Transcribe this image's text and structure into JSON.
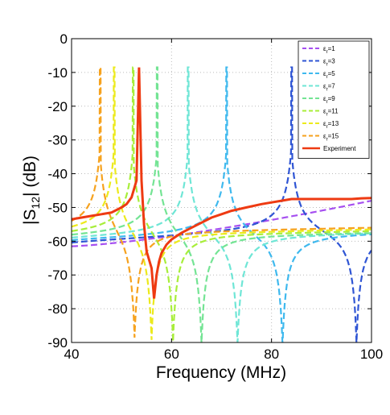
{
  "chart_data": {
    "type": "line",
    "title": "",
    "xlabel": "Frequency (MHz)",
    "ylabel": {
      "main": "|S",
      "sub": "12",
      "rest": "| (dB)"
    },
    "xlim": [
      40,
      100
    ],
    "ylim": [
      -90,
      0
    ],
    "xticks": [
      "40",
      "60",
      "80",
      "100"
    ],
    "xtick_values": [
      40,
      60,
      80,
      100
    ],
    "yticks": [
      "0",
      "-10",
      "-20",
      "-30",
      "-40",
      "-50",
      "-60",
      "-70",
      "-80",
      "-90"
    ],
    "ytick_values": [
      0,
      -10,
      -20,
      -30,
      -40,
      -50,
      -60,
      -70,
      -80,
      -90
    ],
    "grid": true,
    "legend_position": "top-right",
    "series": [
      {
        "name": "ε_r=1",
        "label_main": "ε",
        "label_sub": "r",
        "label_rest": "=1",
        "color": "#a64ff0",
        "dash": "dashed",
        "kind": "resonant",
        "resonance": null,
        "antiresonance": null,
        "level": -61.5,
        "end": -48.0
      },
      {
        "name": "ε_r=3",
        "label_main": "ε",
        "label_sub": "r",
        "label_rest": "=3",
        "color": "#2f55d4",
        "dash": "dashed",
        "kind": "resonant",
        "resonance": 84.0,
        "antiresonance": 97.0,
        "level": -61.0,
        "end": -57.0
      },
      {
        "name": "ε_r=5",
        "label_main": "ε",
        "label_sub": "r",
        "label_rest": "=5",
        "color": "#3fb9ee",
        "dash": "dashed",
        "kind": "resonant",
        "resonance": 71.0,
        "antiresonance": 82.2,
        "level": -60.5,
        "end": -57.5
      },
      {
        "name": "ε_r=7",
        "label_main": "ε",
        "label_sub": "r",
        "label_rest": "=7",
        "color": "#6fe6d6",
        "dash": "dashed",
        "kind": "resonant",
        "resonance": 63.3,
        "antiresonance": 73.2,
        "level": -60.0,
        "end": -57.5
      },
      {
        "name": "ε_r=9",
        "label_main": "ε",
        "label_sub": "r",
        "label_rest": "=9",
        "color": "#74e494",
        "dash": "dashed",
        "kind": "resonant",
        "resonance": 57.1,
        "antiresonance": 66.0,
        "level": -59.5,
        "end": -57.5
      },
      {
        "name": "ε_r=11",
        "label_main": "ε",
        "label_sub": "r",
        "label_rest": "=11",
        "color": "#a8ee3a",
        "dash": "dashed",
        "kind": "resonant",
        "resonance": 52.3,
        "antiresonance": 60.3,
        "level": -59.0,
        "end": -57.0
      },
      {
        "name": "ε_r=13",
        "label_main": "ε",
        "label_sub": "r",
        "label_rest": "=13",
        "color": "#ecea1c",
        "dash": "dashed",
        "kind": "resonant",
        "resonance": 48.5,
        "antiresonance": 56.0,
        "level": -58.5,
        "end": -56.5
      },
      {
        "name": "ε_r=15",
        "label_main": "ε",
        "label_sub": "r",
        "label_rest": "=15",
        "color": "#f6a21e",
        "dash": "dashed",
        "kind": "resonant",
        "resonance": 45.7,
        "antiresonance": 52.6,
        "level": -58.0,
        "end": -56.0
      },
      {
        "name": "Experiment",
        "label_main": "Experiment",
        "label_sub": "",
        "label_rest": "",
        "color": "#ee3a12",
        "dash": "solid",
        "kind": "experiment",
        "x": [
          40,
          42,
          44,
          46,
          48,
          50,
          51,
          52,
          53,
          53.5,
          54,
          54.5,
          55,
          56,
          56.5,
          57,
          57.5,
          58,
          59,
          60,
          62,
          64,
          66,
          68,
          70,
          72,
          75,
          78,
          80,
          82,
          84,
          86,
          88,
          90,
          92,
          94,
          96,
          98,
          100
        ],
        "y": [
          -53.5,
          -53,
          -52.5,
          -52,
          -51.5,
          -50,
          -49,
          -47,
          -42,
          -8.5,
          -42,
          -55,
          -63,
          -68,
          -77,
          -70,
          -66,
          -63.5,
          -61,
          -59.5,
          -57.5,
          -56,
          -54.5,
          -53,
          -52,
          -51,
          -50,
          -49,
          -48.5,
          -48,
          -47.5,
          -47.5,
          -47.5,
          -47.5,
          -47.5,
          -47.5,
          -47.5,
          -47.3,
          -47.2
        ]
      }
    ]
  }
}
